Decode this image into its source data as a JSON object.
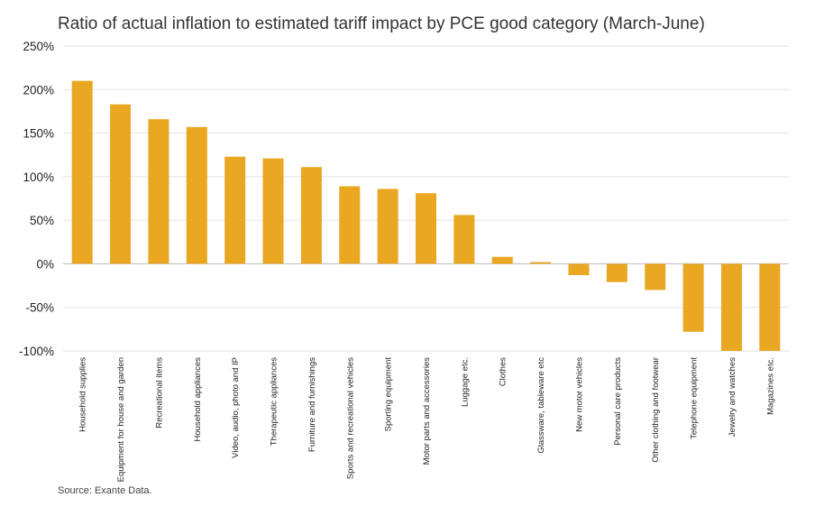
{
  "chart_data": {
    "type": "bar",
    "title": "Ratio of actual inflation to estimated tariff impact by PCE good category (March-June)",
    "xlabel": "",
    "ylabel": "",
    "ylim": [
      -100,
      250
    ],
    "yticks": [
      250,
      200,
      150,
      100,
      50,
      0,
      -50,
      -100
    ],
    "ytick_labels": [
      "250%",
      "200%",
      "150%",
      "100%",
      "50%",
      "0%",
      "-50%",
      "-100%"
    ],
    "grid": true,
    "bar_color": "#E9A722",
    "categories": [
      "Household supplies",
      "Equipment for house and garden",
      "Recreational items",
      "Household appliances",
      "Video, audio, photo and IP",
      "Therapeutic appliances",
      "Furniture and furnishings",
      "Sports and recreational vehicles",
      "Sporting equipment",
      "Motor parts and accessories",
      "Luggage etc.",
      "Clothes",
      "Glassware, tableware etc",
      "New motor vehicles",
      "Personal care products",
      "Other clothing and footwear",
      "Telephone equipment",
      "Jewelry and watches",
      "Magazines etc."
    ],
    "values": [
      210,
      183,
      166,
      157,
      123,
      121,
      111,
      89,
      86,
      81,
      56,
      8,
      2,
      -13,
      -21,
      -30,
      -78,
      -100,
      -100
    ],
    "source": "Source: Exante Data."
  }
}
